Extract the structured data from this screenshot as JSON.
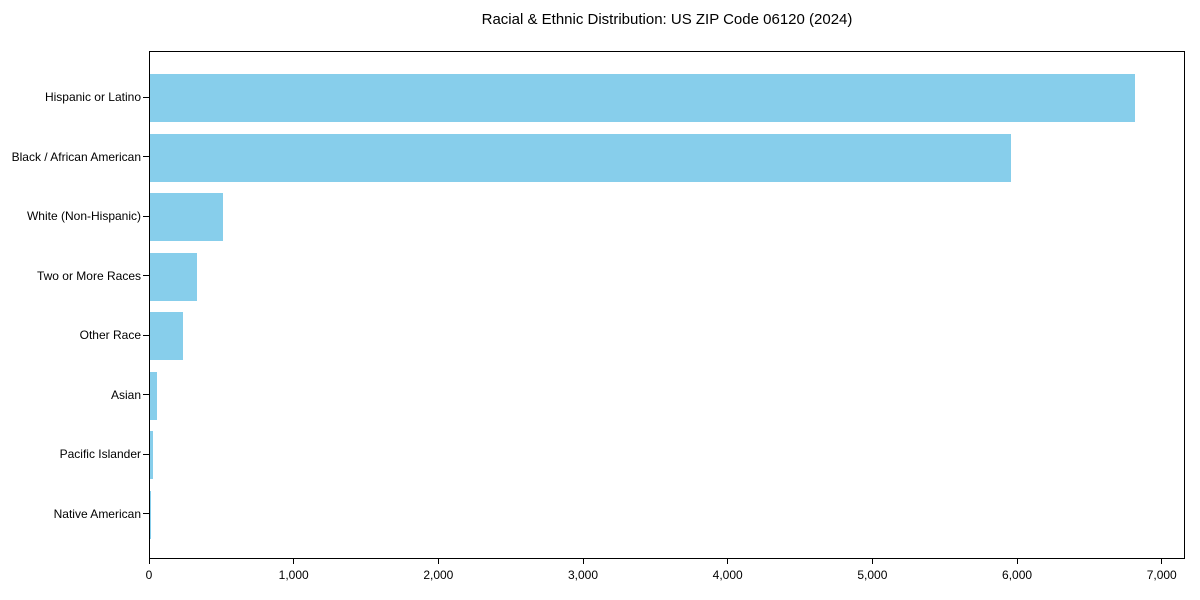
{
  "figure": {
    "background": "#ffffff",
    "text_color": "#000000",
    "spine_color": "#000000"
  },
  "chart_data": {
    "type": "bar",
    "orientation": "horizontal",
    "title": "Racial & Ethnic Distribution: US ZIP Code 06120 (2024)",
    "categories": [
      "Hispanic or Latino",
      "Black / African American",
      "White (Non-Hispanic)",
      "Two or More Races",
      "Other Race",
      "Asian",
      "Pacific Islander",
      "Native American"
    ],
    "values": [
      6820,
      5960,
      503,
      325,
      232,
      48,
      24,
      4
    ],
    "bar_color": "#87CEEB",
    "xlabel": "",
    "ylabel": "",
    "xlim": [
      0,
      7161
    ],
    "xticks": [
      0,
      1000,
      2000,
      3000,
      4000,
      5000,
      6000,
      7000
    ],
    "xtick_labels": [
      "0",
      "1,000",
      "2,000",
      "3,000",
      "4,000",
      "5,000",
      "6,000",
      "7,000"
    ],
    "grid": false,
    "legend": "none"
  }
}
